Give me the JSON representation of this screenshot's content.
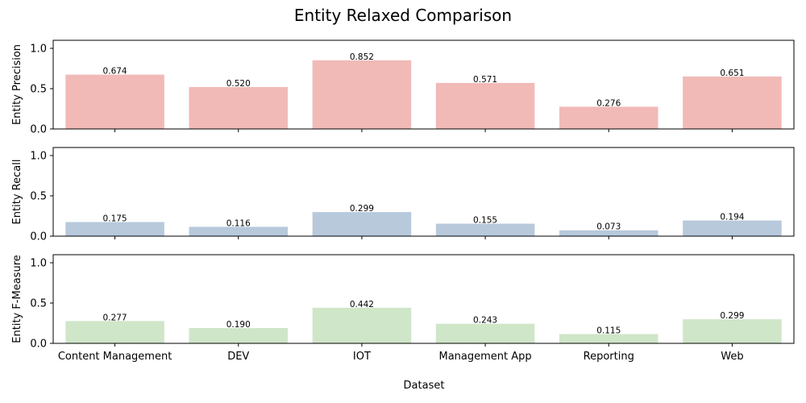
{
  "chart_data": {
    "type": "bar",
    "title": "Entity Relaxed Comparison",
    "xlabel": "Dataset",
    "categories": [
      "Content Management",
      "DEV",
      "IOT",
      "Management App",
      "Reporting",
      "Web"
    ],
    "ylim": [
      0,
      1.1
    ],
    "yticks": [
      "0.0",
      "0.5",
      "1.0"
    ],
    "grid": false,
    "subplots": [
      {
        "ylabel": "Entity Precision",
        "color": "#f1bab7",
        "values": [
          0.674,
          0.52,
          0.852,
          0.571,
          0.276,
          0.651
        ],
        "value_labels": [
          "0.674",
          "0.520",
          "0.852",
          "0.571",
          "0.276",
          "0.651"
        ]
      },
      {
        "ylabel": "Entity Recall",
        "color": "#b7c9db",
        "values": [
          0.175,
          0.116,
          0.299,
          0.155,
          0.073,
          0.194
        ],
        "value_labels": [
          "0.175",
          "0.116",
          "0.299",
          "0.155",
          "0.073",
          "0.194"
        ]
      },
      {
        "ylabel": "Entity F-Measure",
        "color": "#cfe6c8",
        "values": [
          0.277,
          0.19,
          0.442,
          0.243,
          0.115,
          0.299
        ],
        "value_labels": [
          "0.277",
          "0.190",
          "0.442",
          "0.243",
          "0.115",
          "0.299"
        ]
      }
    ]
  }
}
